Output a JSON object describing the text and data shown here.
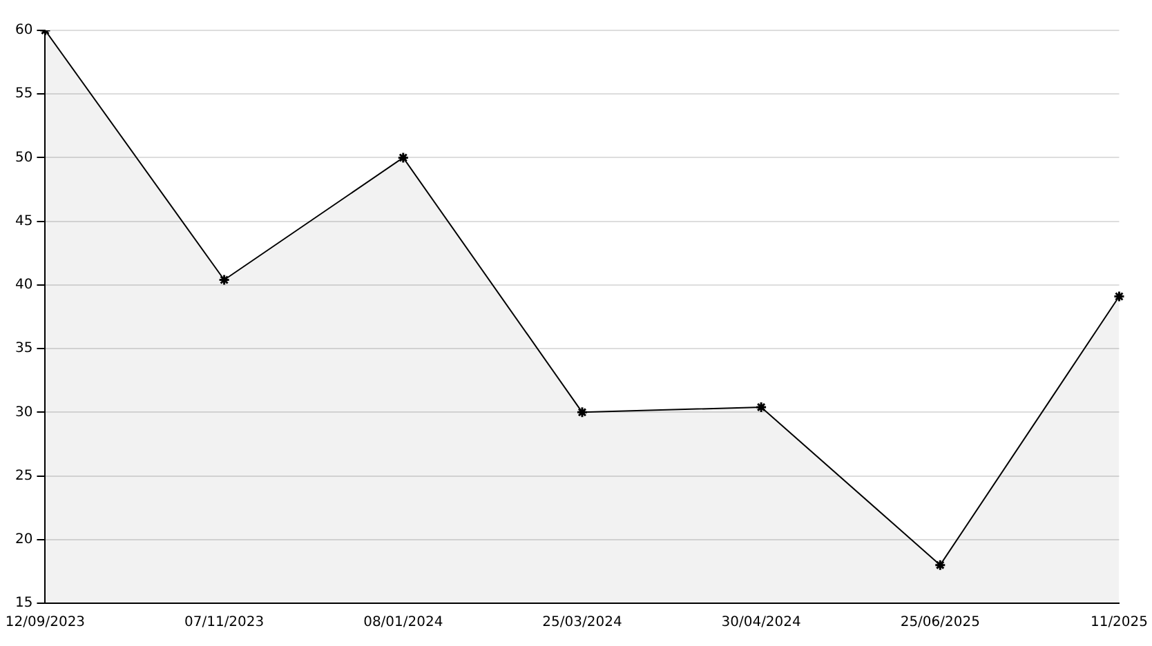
{
  "chart_data": {
    "type": "area",
    "categories": [
      "12/09/2023",
      "07/11/2023",
      "08/01/2024",
      "25/03/2024",
      "30/04/2024",
      "25/06/2025",
      "11/2025"
    ],
    "series": [
      {
        "color": "#000000",
        "values": [
          60,
          40.4,
          50,
          30,
          30.4,
          18,
          39.1
        ]
      }
    ],
    "ylim": [
      15,
      60
    ],
    "yticks": [
      15,
      20,
      25,
      30,
      35,
      40,
      45,
      50,
      55,
      60
    ],
    "grid": "y",
    "legend": false,
    "marker": "cross",
    "line_style": "solid"
  }
}
